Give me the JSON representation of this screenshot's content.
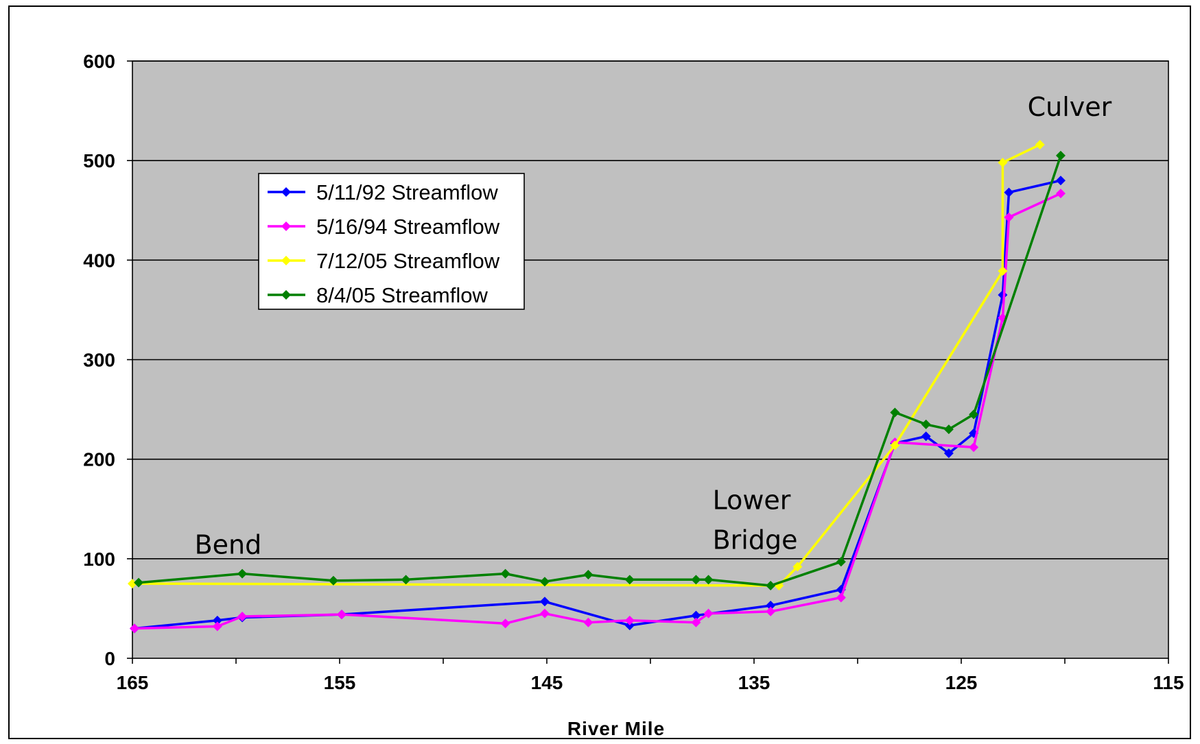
{
  "chart_data": {
    "type": "line",
    "title": "",
    "xlabel": "River Mile",
    "ylabel": "",
    "xlim": [
      165,
      115
    ],
    "ylim": [
      0,
      600
    ],
    "x_ticks": [
      "165",
      "155",
      "145",
      "135",
      "125",
      "115"
    ],
    "y_ticks": [
      "0",
      "100",
      "200",
      "300",
      "400",
      "500",
      "600"
    ],
    "grid": "horizontal",
    "legend_position": "upper-left",
    "plot_background": "#c0c0c0",
    "series": [
      {
        "name": "5/11/92 Streamflow",
        "color": "#0000ff",
        "points": [
          [
            164.9,
            30
          ],
          [
            160.9,
            38
          ],
          [
            159.7,
            41
          ],
          [
            154.9,
            44
          ],
          [
            145.1,
            57
          ],
          [
            141.0,
            33
          ],
          [
            137.8,
            43
          ],
          [
            134.2,
            53
          ],
          [
            130.8,
            69
          ],
          [
            128.2,
            216
          ],
          [
            126.7,
            223
          ],
          [
            125.6,
            206
          ],
          [
            124.4,
            226
          ],
          [
            123.0,
            365
          ],
          [
            122.7,
            468
          ],
          [
            120.2,
            480
          ]
        ]
      },
      {
        "name": "5/16/94 Streamflow",
        "color": "#ff00ff",
        "points": [
          [
            164.9,
            30
          ],
          [
            160.9,
            32
          ],
          [
            159.7,
            42
          ],
          [
            154.9,
            44
          ],
          [
            147.0,
            35
          ],
          [
            145.1,
            45
          ],
          [
            143.0,
            36
          ],
          [
            141.0,
            38
          ],
          [
            137.8,
            36
          ],
          [
            137.2,
            45
          ],
          [
            134.2,
            47
          ],
          [
            130.8,
            61
          ],
          [
            128.2,
            217
          ],
          [
            124.4,
            212
          ],
          [
            123.0,
            342
          ],
          [
            122.7,
            443
          ],
          [
            120.2,
            467
          ]
        ]
      },
      {
        "name": "7/12/05 Streamflow",
        "color": "#ffff00",
        "points": [
          [
            165.0,
            75
          ],
          [
            133.8,
            73
          ],
          [
            132.9,
            92
          ],
          [
            128.2,
            214
          ],
          [
            123.0,
            389
          ],
          [
            123.0,
            498
          ],
          [
            121.2,
            516
          ]
        ]
      },
      {
        "name": "8/4/05 Streamflow",
        "color": "#008000",
        "points": [
          [
            164.7,
            76
          ],
          [
            159.7,
            85
          ],
          [
            155.3,
            78
          ],
          [
            151.8,
            79
          ],
          [
            147.0,
            85
          ],
          [
            145.1,
            77
          ],
          [
            143.0,
            84
          ],
          [
            141.0,
            79
          ],
          [
            137.8,
            79
          ],
          [
            137.2,
            79
          ],
          [
            134.2,
            73
          ],
          [
            130.8,
            97
          ],
          [
            128.2,
            247
          ],
          [
            126.7,
            235
          ],
          [
            125.6,
            230
          ],
          [
            124.4,
            245
          ],
          [
            120.2,
            505
          ]
        ]
      }
    ],
    "annotations": [
      {
        "text": "Bend",
        "x": 162,
        "y": 105
      },
      {
        "text": "Lower",
        "x": 137,
        "y": 150
      },
      {
        "text": "Bridge",
        "x": 137,
        "y": 110
      },
      {
        "text": "Culver",
        "x": 121.8,
        "y": 545
      }
    ]
  }
}
